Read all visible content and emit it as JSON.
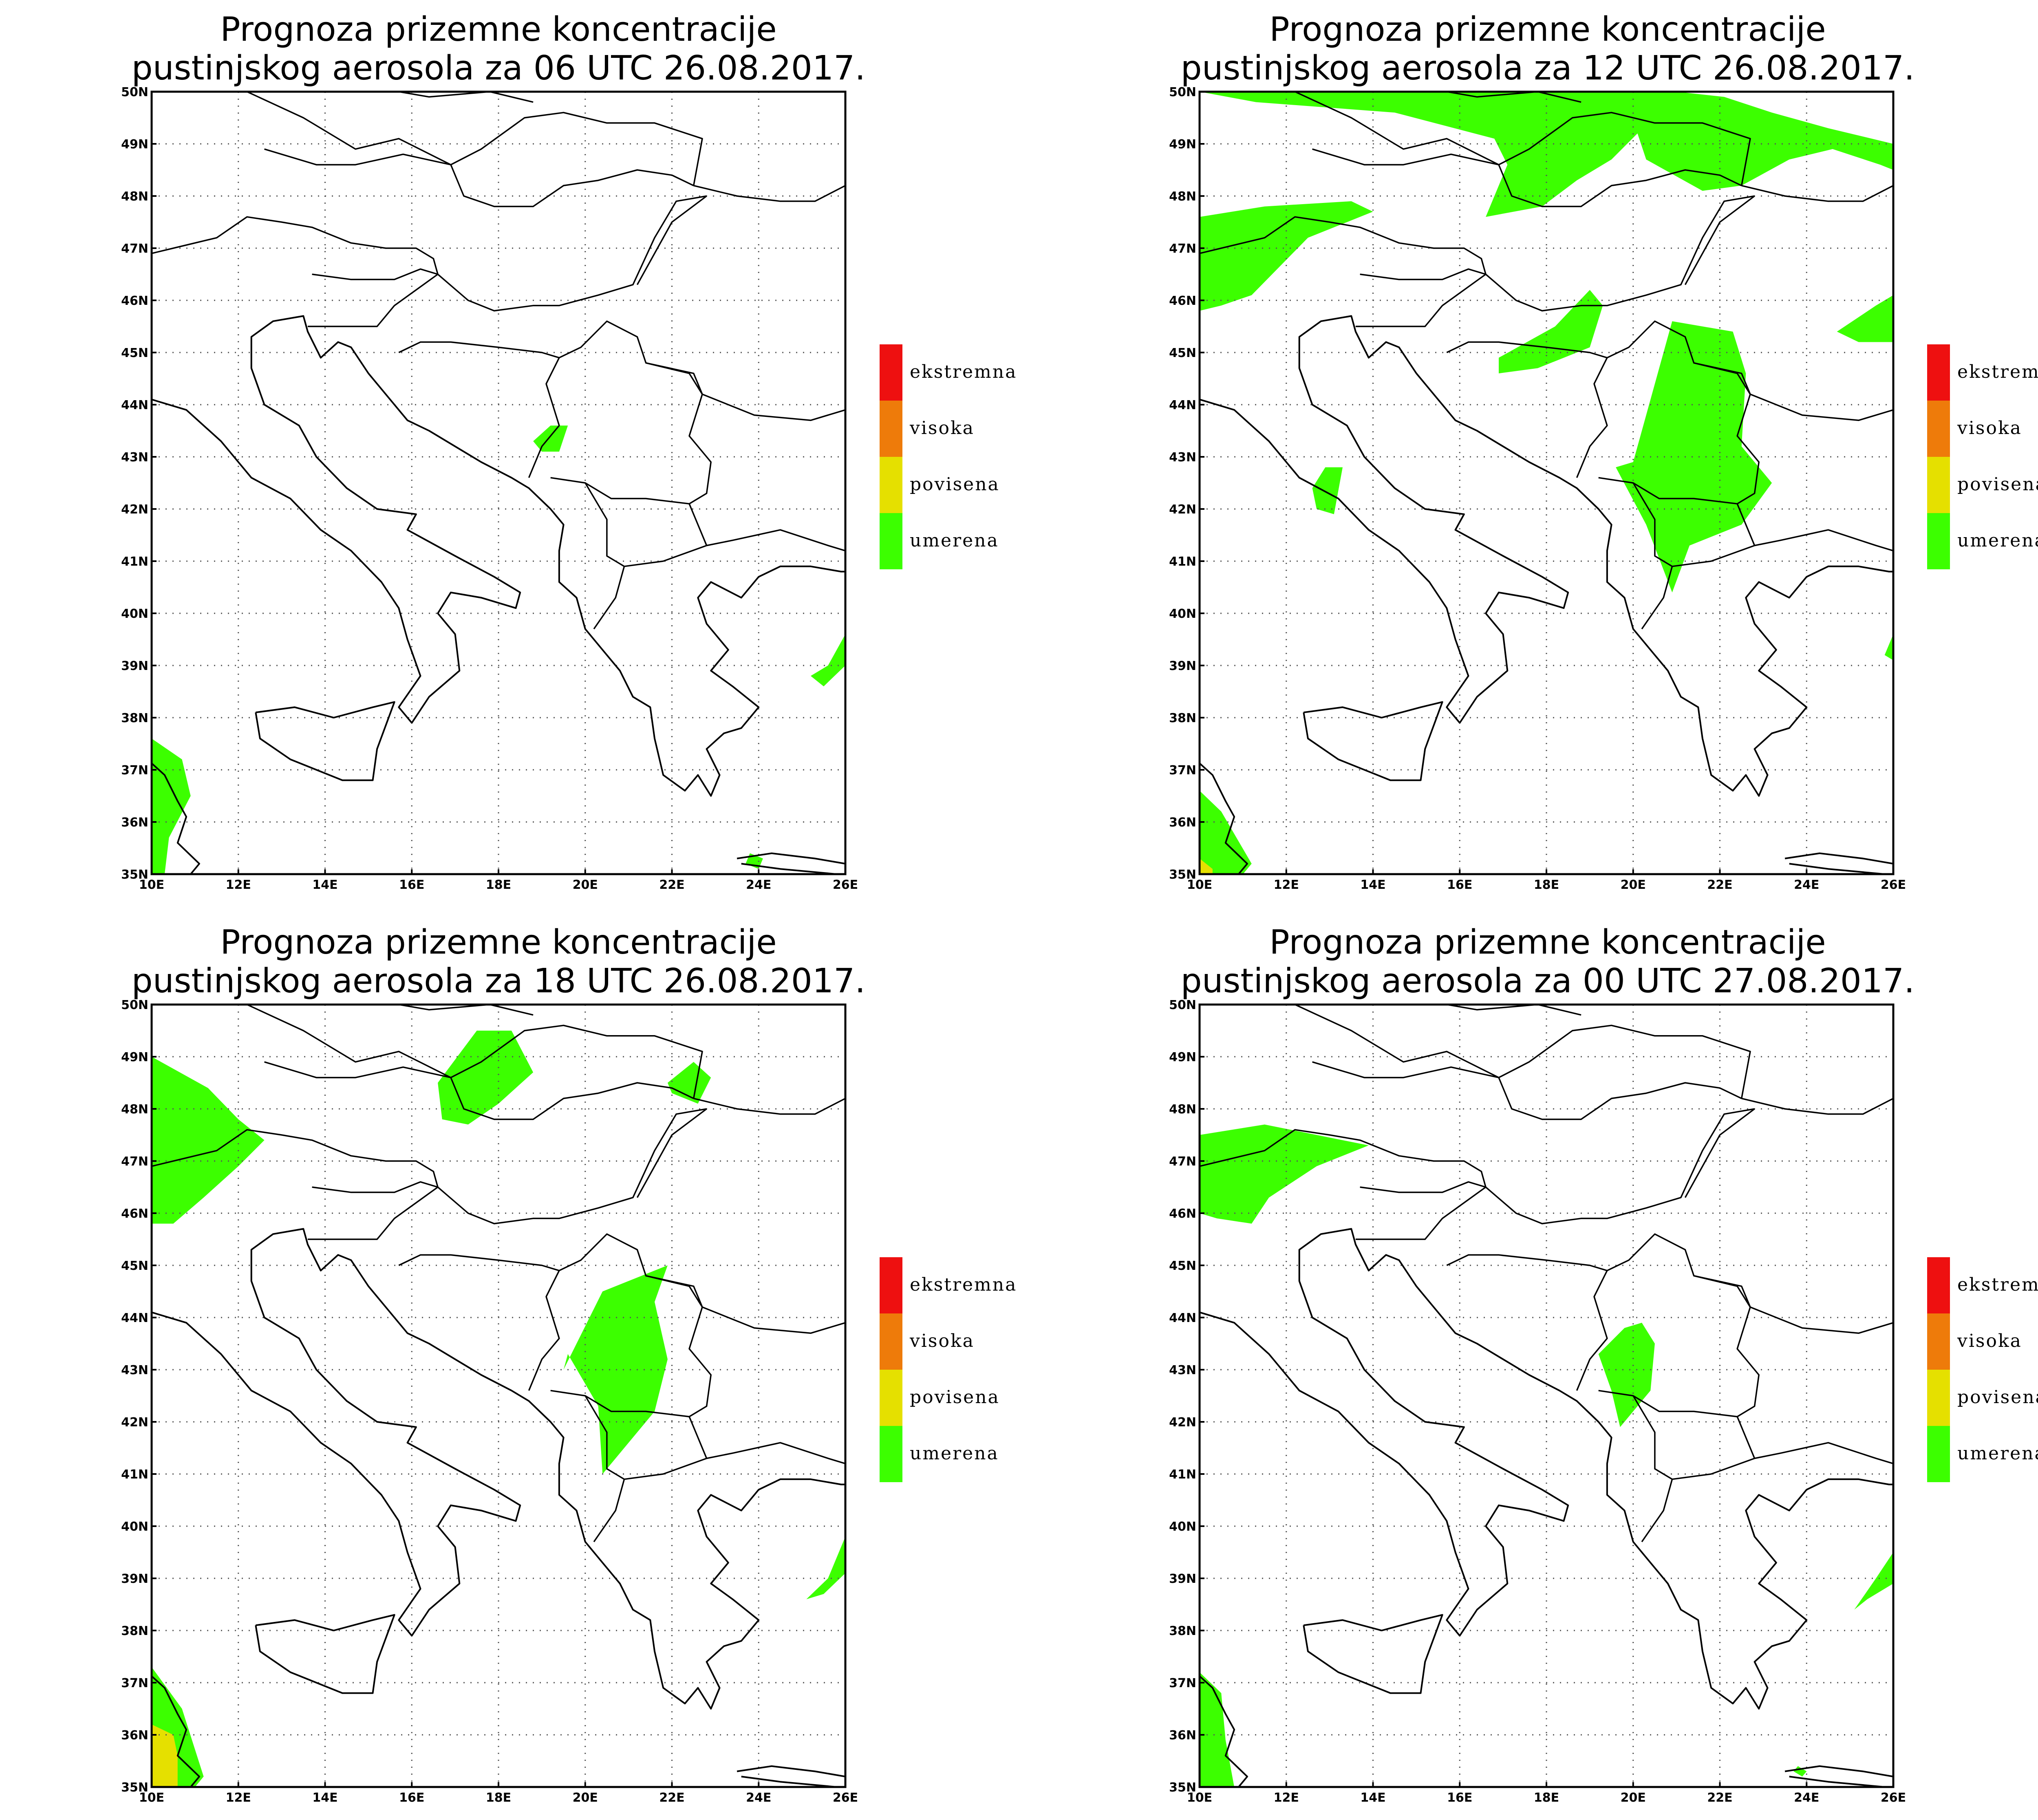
{
  "map_data": {
    "lon_range": [
      10,
      26
    ],
    "lat_range": [
      35,
      50
    ],
    "lon_ticks": [
      "10E",
      "12E",
      "14E",
      "16E",
      "18E",
      "20E",
      "22E",
      "24E",
      "26E"
    ],
    "lat_ticks": [
      "35N",
      "36N",
      "37N",
      "38N",
      "39N",
      "40N",
      "41N",
      "42N",
      "43N",
      "44N",
      "45N",
      "46N",
      "47N",
      "48N",
      "49N",
      "50N"
    ],
    "grid": true,
    "colors": {
      "umerena": "#3cff00",
      "povisena": "#e5e000",
      "visoka": "#ee7b0a",
      "ekstremna": "#ee1010"
    },
    "legend": [
      {
        "label": "ekstremna",
        "color": "#ee1010"
      },
      {
        "label": "visoka",
        "color": "#ee7b0a"
      },
      {
        "label": "povisena",
        "color": "#e5e000"
      },
      {
        "label": "umerena",
        "color": "#3cff00"
      }
    ],
    "panels": [
      {
        "title_line1": "Prognoza prizemne koncentracije",
        "title_line2": "pustinjskog aerosola za 06 UTC 26.08.2017.",
        "regions": [
          {
            "level": "umerena",
            "poly": [
              [
                10,
                37.6
              ],
              [
                10.7,
                37.2
              ],
              [
                10.9,
                36.5
              ],
              [
                10.4,
                35.7
              ],
              [
                10.3,
                35
              ],
              [
                10,
                35
              ]
            ]
          },
          {
            "level": "umerena",
            "poly": [
              [
                18.8,
                43.3
              ],
              [
                19.2,
                43.6
              ],
              [
                19.6,
                43.6
              ],
              [
                19.4,
                43.1
              ],
              [
                19.0,
                43.1
              ]
            ]
          },
          {
            "level": "umerena",
            "poly": [
              [
                25.2,
                38.8
              ],
              [
                25.6,
                39.0
              ],
              [
                26,
                39.6
              ],
              [
                26,
                39.0
              ],
              [
                25.5,
                38.6
              ]
            ]
          },
          {
            "level": "umerena",
            "poly": [
              [
                23.8,
                35.4
              ],
              [
                24.1,
                35.3
              ],
              [
                24.0,
                35.1
              ],
              [
                23.7,
                35.2
              ]
            ]
          }
        ]
      },
      {
        "title_line1": "Prognoza prizemne koncentracije",
        "title_line2": "pustinjskog aerosola za 12 UTC 26.08.2017.",
        "regions": [
          {
            "level": "umerena",
            "poly": [
              [
                10,
                50
              ],
              [
                11.3,
                49.8
              ],
              [
                14.5,
                49.6
              ],
              [
                16.8,
                49.1
              ],
              [
                17.1,
                48.6
              ],
              [
                16.6,
                47.6
              ],
              [
                17.9,
                47.8
              ],
              [
                18.7,
                48.3
              ],
              [
                19.5,
                48.7
              ],
              [
                20.1,
                49.2
              ],
              [
                20.3,
                48.7
              ],
              [
                21.6,
                48.1
              ],
              [
                22.5,
                48.2
              ],
              [
                23.6,
                48.7
              ],
              [
                24.6,
                48.9
              ],
              [
                25.7,
                48.6
              ],
              [
                26,
                48.5
              ],
              [
                26,
                49.0
              ],
              [
                24.5,
                49.3
              ],
              [
                23.2,
                49.6
              ],
              [
                22.1,
                49.9
              ],
              [
                21,
                50
              ]
            ]
          },
          {
            "level": "umerena",
            "poly": [
              [
                10,
                47.6
              ],
              [
                11.5,
                47.8
              ],
              [
                13.5,
                47.9
              ],
              [
                14,
                47.7
              ],
              [
                12.5,
                47.2
              ],
              [
                11.2,
                46.1
              ],
              [
                10.5,
                45.9
              ],
              [
                10,
                45.8
              ]
            ]
          },
          {
            "level": "umerena",
            "poly": [
              [
                16.9,
                44.9
              ],
              [
                18.2,
                45.5
              ],
              [
                19.0,
                46.2
              ],
              [
                19.3,
                45.9
              ],
              [
                19.0,
                45.1
              ],
              [
                17.8,
                44.7
              ],
              [
                16.9,
                44.6
              ]
            ]
          },
          {
            "level": "umerena",
            "poly": [
              [
                20.0,
                42.9
              ],
              [
                20.9,
                45.6
              ],
              [
                22.3,
                45.4
              ],
              [
                22.6,
                44.6
              ],
              [
                22.5,
                43.2
              ],
              [
                23.2,
                42.5
              ],
              [
                22.5,
                41.7
              ],
              [
                21.3,
                41.3
              ],
              [
                20.9,
                40.4
              ],
              [
                20.3,
                41.7
              ],
              [
                19.6,
                42.8
              ]
            ]
          },
          {
            "level": "umerena",
            "poly": [
              [
                12.6,
                42.4
              ],
              [
                12.9,
                42.8
              ],
              [
                13.3,
                42.8
              ],
              [
                13.1,
                41.9
              ],
              [
                12.7,
                42.0
              ]
            ]
          },
          {
            "level": "umerena",
            "poly": [
              [
                24.7,
                45.4
              ],
              [
                25.6,
                45.9
              ],
              [
                26,
                46.1
              ],
              [
                26,
                45.2
              ],
              [
                25.2,
                45.2
              ]
            ]
          },
          {
            "level": "umerena",
            "poly": [
              [
                10,
                36.6
              ],
              [
                10.5,
                36.2
              ],
              [
                11.2,
                35.2
              ],
              [
                11.0,
                35
              ],
              [
                10,
                35
              ]
            ]
          },
          {
            "level": "povisena",
            "poly": [
              [
                10,
                35.3
              ],
              [
                10.3,
                35.1
              ],
              [
                10.3,
                35
              ],
              [
                10,
                35
              ]
            ]
          },
          {
            "level": "umerena",
            "poly": [
              [
                25.9,
                39.4
              ],
              [
                26,
                39.6
              ],
              [
                26,
                39.1
              ],
              [
                25.8,
                39.2
              ]
            ]
          }
        ]
      },
      {
        "title_line1": "Prognoza prizemne koncentracije",
        "title_line2": "pustinjskog aerosola za 18 UTC 26.08.2017.",
        "regions": [
          {
            "level": "umerena",
            "poly": [
              [
                10,
                49.0
              ],
              [
                11.3,
                48.4
              ],
              [
                12.0,
                47.8
              ],
              [
                12.6,
                47.4
              ],
              [
                12.0,
                46.9
              ],
              [
                11.2,
                46.3
              ],
              [
                10.5,
                45.8
              ],
              [
                10,
                45.8
              ]
            ]
          },
          {
            "level": "umerena",
            "poly": [
              [
                16.6,
                48.5
              ],
              [
                17.5,
                49.5
              ],
              [
                18.3,
                49.5
              ],
              [
                18.8,
                48.7
              ],
              [
                18.0,
                48.1
              ],
              [
                17.3,
                47.7
              ],
              [
                16.7,
                47.8
              ]
            ]
          },
          {
            "level": "umerena",
            "poly": [
              [
                21.9,
                48.5
              ],
              [
                22.5,
                48.9
              ],
              [
                22.9,
                48.6
              ],
              [
                22.6,
                48.1
              ],
              [
                22.0,
                48.3
              ]
            ]
          },
          {
            "level": "umerena",
            "poly": [
              [
                19.5,
                43.0
              ],
              [
                20.4,
                44.5
              ],
              [
                21.9,
                45.0
              ],
              [
                21.6,
                44.3
              ],
              [
                21.9,
                43.2
              ],
              [
                21.6,
                42.2
              ],
              [
                20.4,
                41.0
              ],
              [
                20.3,
                42.3
              ],
              [
                19.6,
                43.3
              ]
            ]
          },
          {
            "level": "umerena",
            "poly": [
              [
                25.1,
                38.6
              ],
              [
                25.6,
                39.0
              ],
              [
                26,
                39.8
              ],
              [
                26,
                39.1
              ],
              [
                25.5,
                38.7
              ]
            ]
          },
          {
            "level": "umerena",
            "poly": [
              [
                10,
                37.3
              ],
              [
                10.7,
                36.5
              ],
              [
                11.2,
                35.2
              ],
              [
                11.0,
                35
              ],
              [
                10,
                35
              ]
            ]
          },
          {
            "level": "povisena",
            "poly": [
              [
                10,
                36.2
              ],
              [
                10.5,
                36.0
              ],
              [
                10.6,
                35.6
              ],
              [
                10.6,
                35
              ],
              [
                10,
                35
              ]
            ]
          }
        ]
      },
      {
        "title_line1": "Prognoza prizemne koncentracije",
        "title_line2": "pustinjskog aerosola za 00 UTC 27.08.2017.",
        "regions": [
          {
            "level": "umerena",
            "poly": [
              [
                10,
                47.5
              ],
              [
                11.5,
                47.7
              ],
              [
                12.7,
                47.5
              ],
              [
                13.9,
                47.3
              ],
              [
                12.7,
                46.9
              ],
              [
                11.6,
                46.3
              ],
              [
                11.2,
                45.8
              ],
              [
                10.4,
                45.9
              ],
              [
                10,
                46.0
              ]
            ]
          },
          {
            "level": "umerena",
            "poly": [
              [
                19.2,
                43.3
              ],
              [
                19.8,
                43.8
              ],
              [
                20.2,
                43.9
              ],
              [
                20.5,
                43.5
              ],
              [
                20.4,
                42.6
              ],
              [
                19.7,
                41.9
              ],
              [
                19.5,
                42.6
              ]
            ]
          },
          {
            "level": "umerena",
            "poly": [
              [
                25.1,
                38.4
              ],
              [
                25.6,
                39.0
              ],
              [
                26,
                39.5
              ],
              [
                26,
                38.9
              ],
              [
                25.4,
                38.6
              ]
            ]
          },
          {
            "level": "umerena",
            "poly": [
              [
                10,
                37.2
              ],
              [
                10.5,
                36.8
              ],
              [
                10.6,
                35.9
              ],
              [
                10.8,
                35
              ],
              [
                10,
                35
              ]
            ]
          },
          {
            "level": "umerena",
            "poly": [
              [
                23.8,
                35.4
              ],
              [
                24.0,
                35.3
              ],
              [
                23.9,
                35.2
              ],
              [
                23.7,
                35.3
              ]
            ]
          }
        ]
      }
    ]
  }
}
